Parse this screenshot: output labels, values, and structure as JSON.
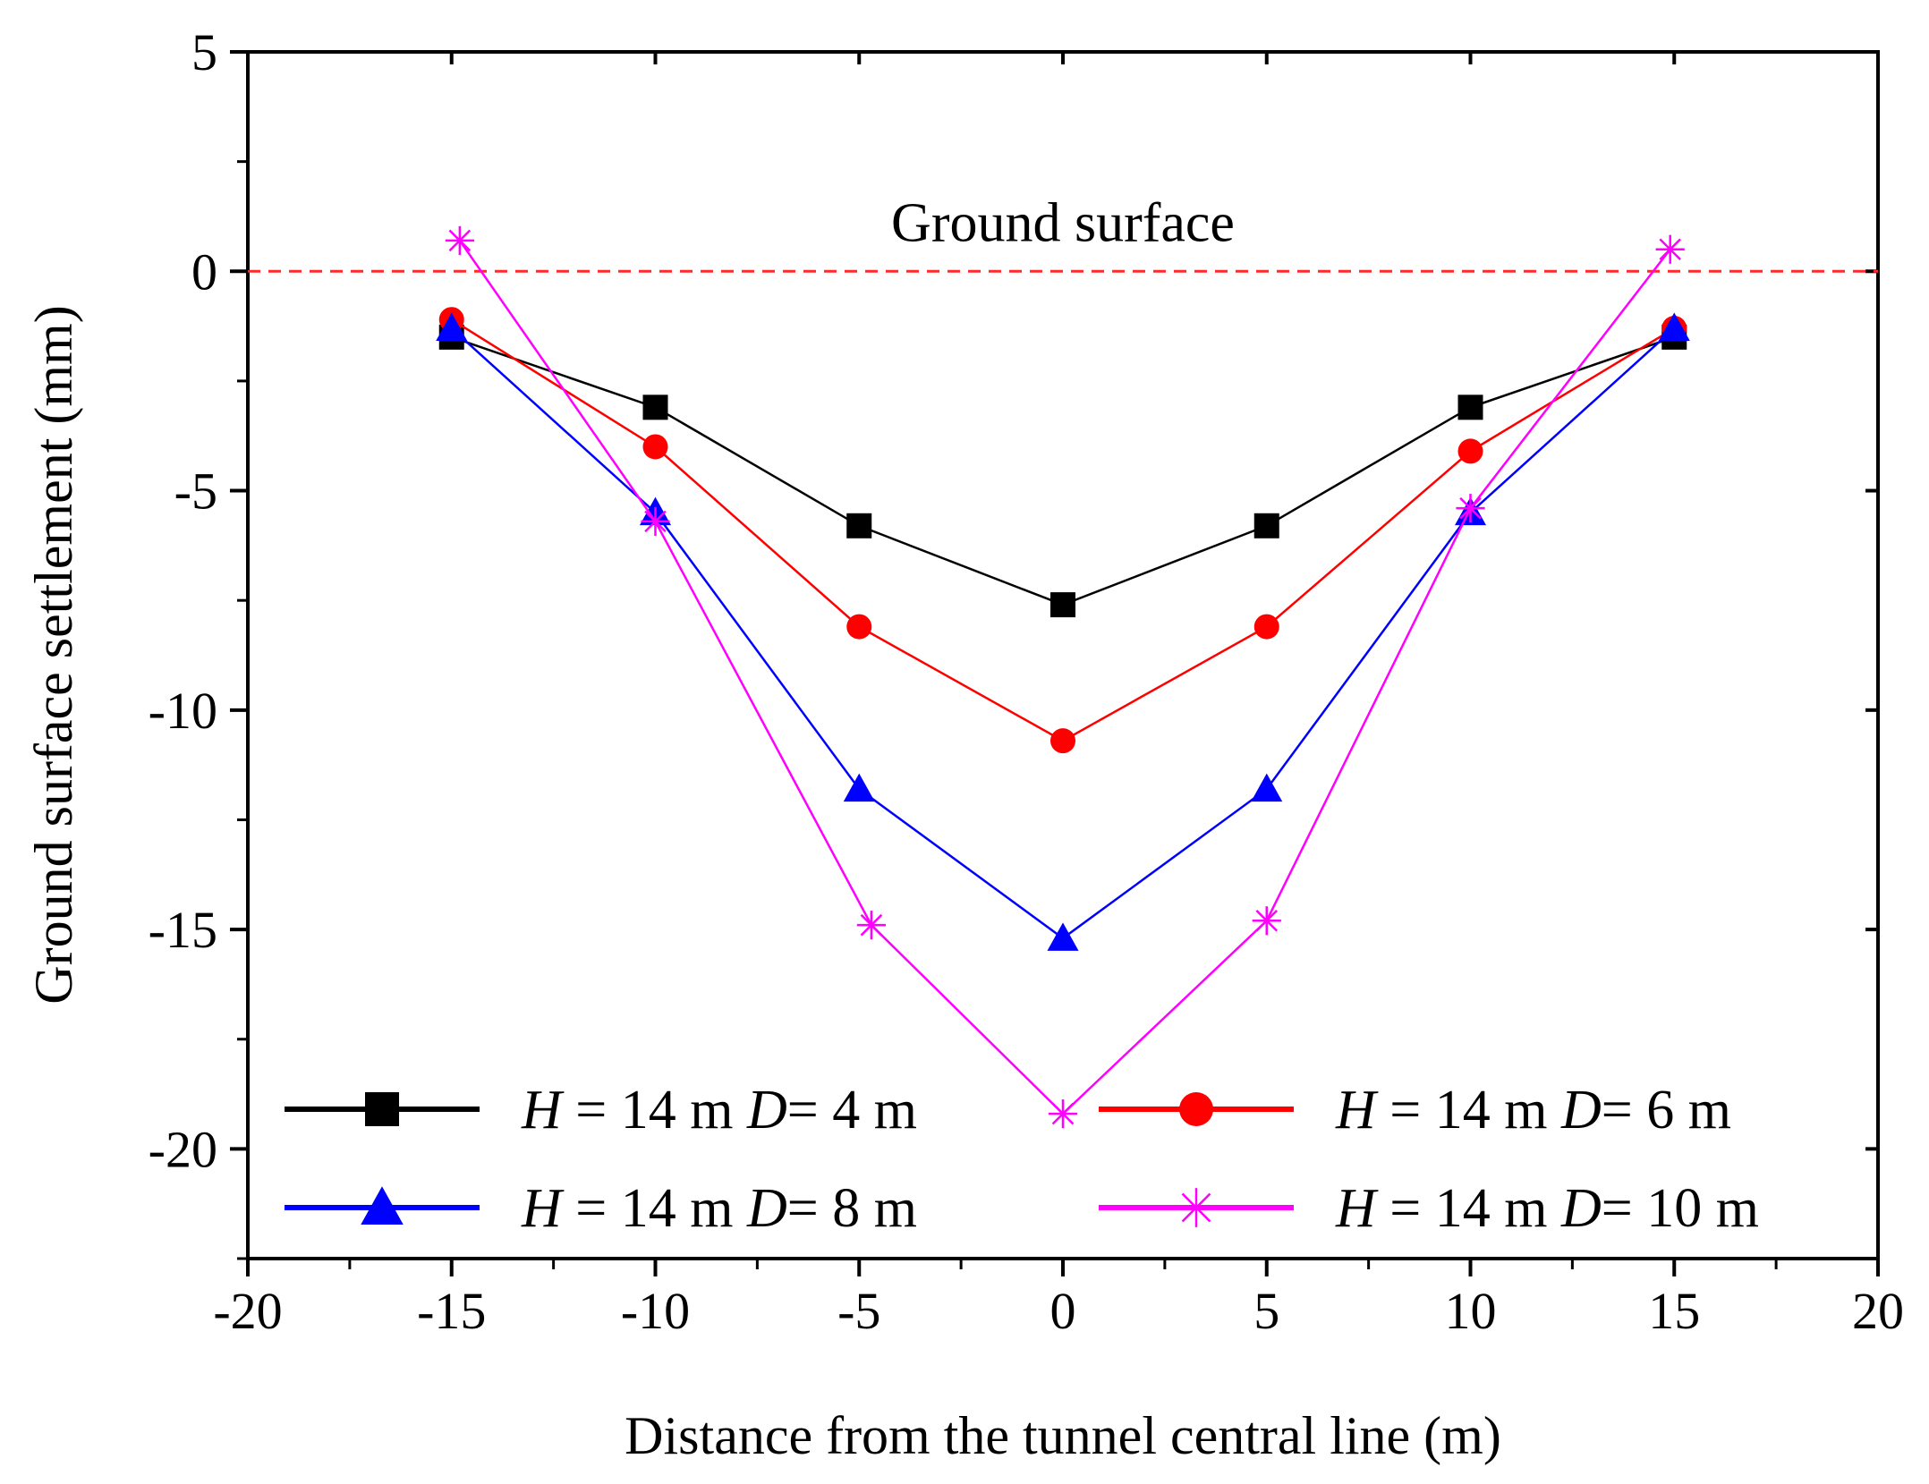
{
  "chart_data": {
    "type": "line",
    "title": "",
    "xlabel": "Distance from the tunnel central line (m)",
    "ylabel": "Ground surface settlement (mm)",
    "xlim": [
      -20,
      20
    ],
    "ylim": [
      -22.5,
      5
    ],
    "xticks": [
      -20,
      -15,
      -10,
      -5,
      0,
      5,
      10,
      15,
      20
    ],
    "yticks": [
      5,
      0,
      -5,
      -10,
      -15,
      -20
    ],
    "xtick_labels": [
      "-20",
      "-15",
      "-10",
      "-5",
      "0",
      "5",
      "10",
      "15",
      "20"
    ],
    "ytick_labels": [
      "5",
      "0",
      "-5",
      "-10",
      "-15",
      "-20"
    ],
    "grid": false,
    "legend_position": "bottom",
    "reference_line": {
      "y": 0,
      "label": "Ground surface",
      "color": "#ff2a2a",
      "style": "dashed"
    },
    "series": [
      {
        "legend": {
          "italic_h": "H",
          "mid": " = 14 m ",
          "italic_d": "D",
          "tail": "= 4 m"
        },
        "color": "#000000",
        "marker": "square",
        "x": [
          -15,
          -10,
          -5,
          0,
          5,
          10,
          15
        ],
        "y": [
          -1.5,
          -3.1,
          -5.8,
          -7.6,
          -5.8,
          -3.1,
          -1.5
        ]
      },
      {
        "legend": {
          "italic_h": "H",
          "mid": " = 14 m ",
          "italic_d": "D",
          "tail": "= 6 m"
        },
        "color": "#ff0000",
        "marker": "circle",
        "x": [
          -15,
          -10,
          -5,
          0,
          5,
          10,
          15
        ],
        "y": [
          -1.1,
          -4.0,
          -8.1,
          -10.7,
          -8.1,
          -4.1,
          -1.3
        ]
      },
      {
        "legend": {
          "italic_h": "H",
          "mid": " = 14 m ",
          "italic_d": "D",
          "tail": "= 8 m"
        },
        "color": "#0000ff",
        "marker": "triangle",
        "x": [
          -15,
          -10,
          -5,
          0,
          5,
          10,
          15
        ],
        "y": [
          -1.3,
          -5.5,
          -11.8,
          -15.2,
          -11.8,
          -5.5,
          -1.3
        ]
      },
      {
        "legend": {
          "italic_h": "H",
          "mid": " = 14 m ",
          "italic_d": "D",
          "tail": "= 10 m"
        },
        "color": "#ff00ff",
        "marker": "star",
        "x": [
          -14.8,
          -10,
          -4.7,
          0,
          5,
          10,
          14.9
        ],
        "y": [
          0.7,
          -5.7,
          -14.9,
          -19.2,
          -14.8,
          -5.4,
          0.5
        ]
      }
    ]
  }
}
